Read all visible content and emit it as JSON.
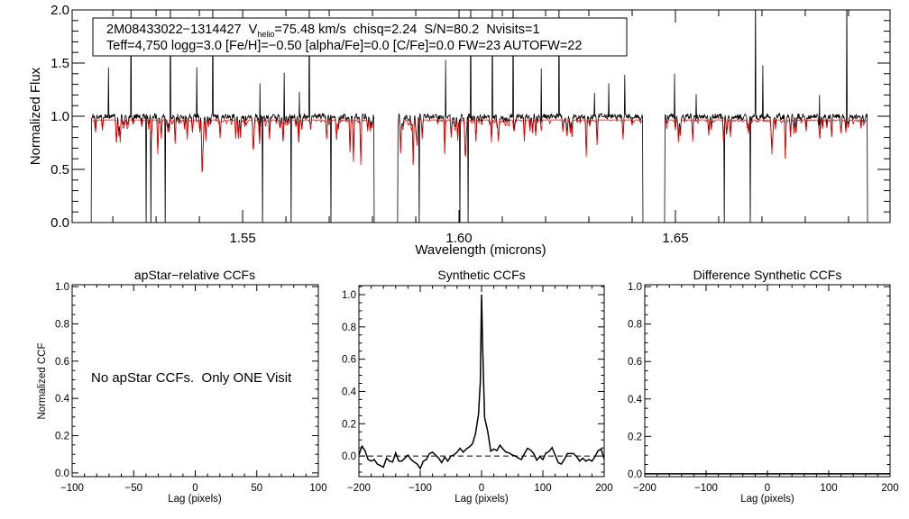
{
  "header": {
    "star_id": "2M08433022−1314427",
    "vhelio_label": "V",
    "vhelio_sub": "helio",
    "vhelio_value": "=75.48 km/s",
    "chisq": "chisq=2.24",
    "sn": "S/N=80.2",
    "nvisits": "Nvisits=1",
    "params": "Teff=4,750 logg=3.0 [Fe/H]=−0.50 [alpha/Fe]=0.0 [C/Fe]=0.0 FW=23 AUTOFW=22"
  },
  "colors": {
    "observed": "#000000",
    "model": "#ff0000",
    "axis": "#000000"
  },
  "chart_data": [
    {
      "type": "line",
      "id": "spectrum",
      "title": "",
      "xlabel": "Wavelength (microns)",
      "ylabel": "Normalized Flux",
      "xlim": [
        1.5106,
        1.6996
      ],
      "ylim": [
        0.0,
        2.0
      ],
      "xticklabels": [
        "1.55",
        "1.60",
        "1.65"
      ],
      "yticklabels": [
        "0.0",
        "0.5",
        "1.0",
        "1.5",
        "2.0"
      ],
      "x_minor_step": 0.01,
      "y_minor_step": 0.1,
      "series": [
        {
          "name": "observed",
          "color": "#000000",
          "continuum": 1.0
        },
        {
          "name": "model",
          "color": "#ff0000",
          "continuum": 0.965
        }
      ],
      "segments": [
        [
          1.515,
          1.5804
        ],
        [
          1.5858,
          1.6425
        ],
        [
          1.6475,
          1.6944
        ]
      ],
      "emission_spikes": [
        {
          "x": 1.519,
          "y": 1.46
        },
        {
          "x": 1.5242,
          "y": 2.2
        },
        {
          "x": 1.5333,
          "y": 2.2
        },
        {
          "x": 1.5394,
          "y": 1.46
        },
        {
          "x": 1.5431,
          "y": 2.2
        },
        {
          "x": 1.554,
          "y": 1.31
        },
        {
          "x": 1.5596,
          "y": 1.41
        },
        {
          "x": 1.5631,
          "y": 1.23
        },
        {
          "x": 1.5654,
          "y": 2.2
        },
        {
          "x": 1.5969,
          "y": 1.53
        },
        {
          "x": 1.6027,
          "y": 2.2
        },
        {
          "x": 1.6077,
          "y": 2.2
        },
        {
          "x": 1.6125,
          "y": 2.2
        },
        {
          "x": 1.619,
          "y": 1.45
        },
        {
          "x": 1.6231,
          "y": 2.2
        },
        {
          "x": 1.6313,
          "y": 1.22
        },
        {
          "x": 1.6346,
          "y": 1.31
        },
        {
          "x": 1.6383,
          "y": 1.39
        },
        {
          "x": 1.6498,
          "y": 1.4
        },
        {
          "x": 1.6548,
          "y": 1.21
        },
        {
          "x": 1.6685,
          "y": 2.2
        },
        {
          "x": 1.6702,
          "y": 1.48
        },
        {
          "x": 1.6833,
          "y": 1.2
        },
        {
          "x": 1.6896,
          "y": 2.2
        }
      ],
      "bad_pixels_zero": [
        1.5277,
        1.5288,
        1.5321,
        1.5546,
        1.5612,
        1.5704,
        1.5908,
        1.6002,
        1.6021,
        1.6613,
        1.6673
      ],
      "strong_absorption": [
        {
          "x": 1.5217,
          "y": 0.75
        },
        {
          "x": 1.5304,
          "y": 0.64
        },
        {
          "x": 1.5344,
          "y": 0.74
        },
        {
          "x": 1.5748,
          "y": 0.66
        },
        {
          "x": 1.5756,
          "y": 0.57
        },
        {
          "x": 1.5773,
          "y": 0.54
        },
        {
          "x": 1.5894,
          "y": 0.54
        },
        {
          "x": 1.5967,
          "y": 0.64
        },
        {
          "x": 1.6723,
          "y": 0.64
        },
        {
          "x": 1.6754,
          "y": 0.6
        }
      ]
    },
    {
      "type": "line",
      "id": "apstar-ccf",
      "title": "apStar−relative CCFs",
      "xlabel": "Lag (pixels)",
      "ylabel": "Normalized CCF",
      "xlim": [
        -100,
        100
      ],
      "ylim": [
        -0.02,
        1.01
      ],
      "xticklabels": [
        "−100",
        "−50",
        "0",
        "50",
        "100"
      ],
      "yticklabels": [
        "0.0",
        "0.2",
        "0.4",
        "0.6",
        "0.8",
        "1.0"
      ],
      "x_minor_step": 10,
      "y_minor_step": 0.05,
      "annotation": "No apStar CCFs.  Only ONE Visit",
      "series": []
    },
    {
      "type": "line",
      "id": "synthetic-ccf",
      "title": "Synthetic CCFs",
      "xlabel": "Lag (pixels)",
      "ylabel": "",
      "xlim": [
        -200,
        200
      ],
      "ylim": [
        -0.128,
        1.056
      ],
      "xticklabels": [
        "−200",
        "−100",
        "0",
        "100",
        "200"
      ],
      "yticklabels": [
        "0.0",
        "0.2",
        "0.4",
        "0.6",
        "0.8",
        "1.0"
      ],
      "x_minor_step": 20,
      "y_minor_step": 0.05,
      "zero_line": "dashed",
      "series": [
        {
          "name": "ccf",
          "color": "#000000",
          "x": [
            -200,
            -195,
            -190,
            -185,
            -180,
            -175,
            -170,
            -165,
            -160,
            -155,
            -150,
            -145,
            -140,
            -135,
            -130,
            -125,
            -120,
            -115,
            -110,
            -105,
            -100,
            -95,
            -90,
            -85,
            -80,
            -75,
            -70,
            -65,
            -60,
            -55,
            -50,
            -45,
            -40,
            -35,
            -30,
            -25,
            -20,
            -15,
            -10,
            -5,
            -2,
            0,
            2,
            5,
            10,
            15,
            20,
            25,
            30,
            35,
            40,
            45,
            50,
            55,
            60,
            65,
            70,
            75,
            80,
            85,
            90,
            95,
            100,
            105,
            110,
            115,
            120,
            125,
            130,
            135,
            140,
            145,
            150,
            155,
            160,
            165,
            170,
            175,
            180,
            185,
            190,
            195,
            200
          ],
          "y": [
            0.006,
            0.061,
            0.033,
            -0.022,
            -0.032,
            -0.022,
            -0.05,
            -0.059,
            -0.069,
            -0.013,
            -0.032,
            -0.037,
            0.019,
            -0.032,
            -0.032,
            -0.013,
            0.006,
            -0.022,
            -0.037,
            -0.05,
            -0.078,
            -0.032,
            -0.022,
            0.015,
            0.024,
            0.006,
            -0.013,
            -0.041,
            -0.007,
            -0.032,
            0.0,
            0.006,
            0.024,
            0.048,
            0.024,
            0.043,
            0.056,
            0.074,
            0.136,
            0.257,
            0.461,
            1.0,
            0.647,
            0.238,
            0.154,
            0.03,
            0.043,
            0.033,
            0.067,
            0.043,
            0.024,
            0.019,
            0.006,
            0.0,
            -0.013,
            -0.022,
            0.015,
            0.048,
            0.037,
            0.015,
            -0.026,
            -0.004,
            -0.022,
            0.019,
            0.028,
            0.052,
            0.006,
            -0.041,
            -0.05,
            -0.022,
            0.015,
            0.015,
            0.015,
            -0.004,
            -0.032,
            -0.013,
            -0.032,
            -0.022,
            -0.032,
            -0.004,
            0.033,
            0.043,
            -0.019
          ]
        }
      ]
    },
    {
      "type": "line",
      "id": "difference-ccf",
      "title": "Difference Synthetic CCFs",
      "xlabel": "Lag (pixels)",
      "ylabel": "",
      "xlim": [
        -200,
        200
      ],
      "ylim": [
        -0.015,
        1.01
      ],
      "xticklabels": [
        "−200",
        "−100",
        "0",
        "100",
        "200"
      ],
      "yticklabels": [
        "0.0",
        "0.2",
        "0.4",
        "0.6",
        "0.8",
        "1.0"
      ],
      "x_minor_step": 20,
      "y_minor_step": 0.05,
      "series": [
        {
          "name": "difference",
          "color": "#000000",
          "x": [
            -200,
            200
          ],
          "y": [
            0.0,
            0.0
          ]
        }
      ]
    }
  ]
}
